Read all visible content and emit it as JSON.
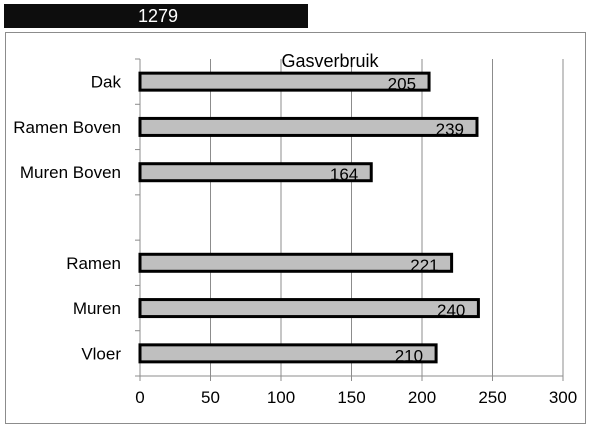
{
  "header": {
    "cell_value": "1279"
  },
  "chart_data": {
    "type": "bar",
    "orientation": "horizontal",
    "title": "Gasverbruik",
    "xlabel": "",
    "ylabel": "",
    "categories": [
      "Dak",
      "Ramen Boven",
      "Muren Boven",
      "",
      "Ramen",
      "Muren",
      "Vloer"
    ],
    "values": [
      205,
      239,
      164,
      null,
      221,
      240,
      210
    ],
    "data_labels": [
      "205",
      "239",
      "164",
      "",
      "221",
      "240",
      "210"
    ],
    "xlim": [
      0,
      300
    ],
    "xticks": [
      "0",
      "50",
      "100",
      "150",
      "200",
      "250",
      "300"
    ],
    "grid": true,
    "legend": "none",
    "colors": {
      "bar_fill": "#bfbfbf",
      "bar_border": "#000000",
      "grid": "#8c8c8c",
      "text": "#000000"
    }
  }
}
